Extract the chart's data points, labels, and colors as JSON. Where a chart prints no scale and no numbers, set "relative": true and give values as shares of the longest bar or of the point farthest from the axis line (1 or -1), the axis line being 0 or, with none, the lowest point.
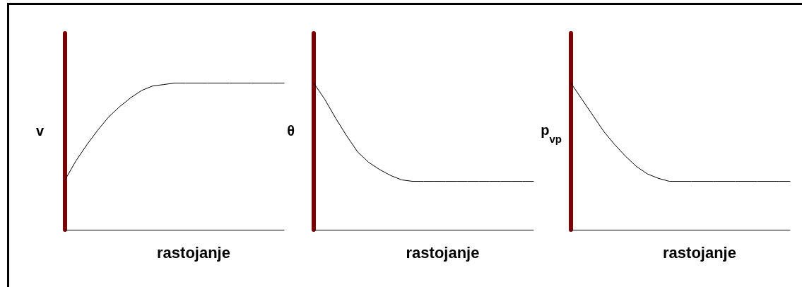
{
  "chart_data": [
    {
      "type": "line",
      "relative": true,
      "xlabel": "rastojanje",
      "ylabel": "v",
      "categories": [
        null,
        null,
        null,
        null,
        null,
        null,
        null,
        null,
        null,
        null,
        null,
        null,
        null,
        null,
        null,
        null,
        null,
        null,
        null,
        null,
        null
      ],
      "series": [
        {
          "color": "#000000",
          "values": [
            0.34,
            0.47,
            0.58,
            0.68,
            0.77,
            0.84,
            0.9,
            0.95,
            0.98,
            0.99,
            1,
            1,
            1,
            1,
            1,
            1,
            1,
            1,
            1,
            1,
            1
          ]
        }
      ]
    },
    {
      "type": "line",
      "relative": true,
      "xlabel": "rastojanje",
      "ylabel": "θ",
      "categories": [
        null,
        null,
        null,
        null,
        null,
        null,
        null,
        null,
        null,
        null,
        null,
        null,
        null,
        null,
        null,
        null,
        null,
        null,
        null,
        null,
        null
      ],
      "series": [
        {
          "color": "#000000",
          "values": [
            1,
            0.89,
            0.76,
            0.64,
            0.53,
            0.46,
            0.41,
            0.37,
            0.34,
            0.33,
            0.33,
            0.33,
            0.33,
            0.33,
            0.33,
            0.33,
            0.33,
            0.33,
            0.33,
            0.33,
            0.33
          ]
        }
      ]
    },
    {
      "type": "line",
      "relative": true,
      "xlabel": "rastojanje",
      "ylabel": "p$_{vp}$",
      "categories": [
        null,
        null,
        null,
        null,
        null,
        null,
        null,
        null,
        null,
        null,
        null,
        null,
        null,
        null,
        null,
        null,
        null,
        null,
        null,
        null,
        null
      ],
      "series": [
        {
          "color": "#000000",
          "values": [
            1,
            0.89,
            0.78,
            0.67,
            0.58,
            0.5,
            0.43,
            0.38,
            0.35,
            0.33,
            0.33,
            0.33,
            0.33,
            0.33,
            0.33,
            0.33,
            0.33,
            0.33,
            0.33,
            0.33,
            0.33
          ]
        }
      ]
    }
  ]
}
